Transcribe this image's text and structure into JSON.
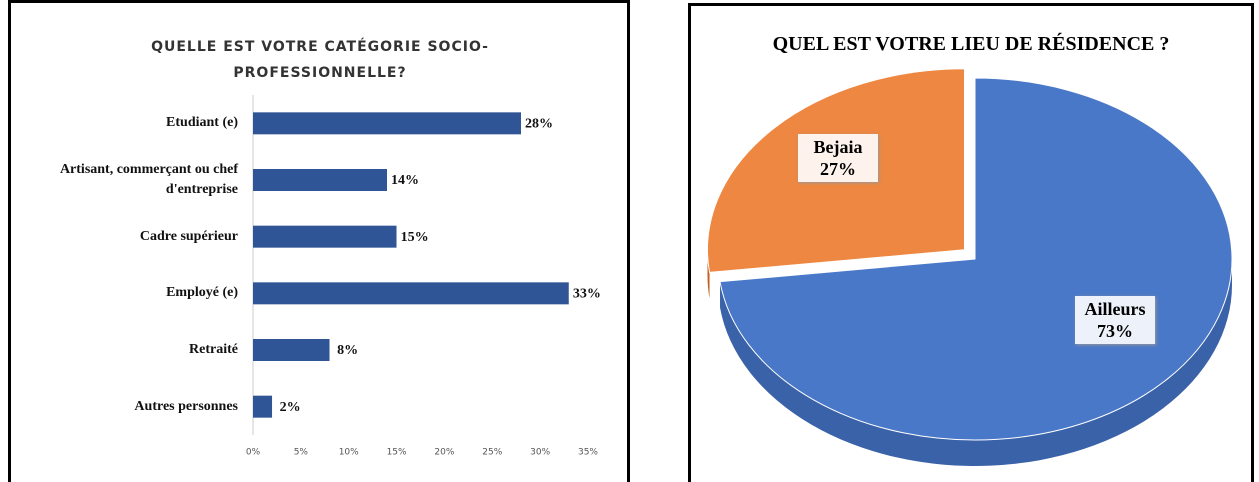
{
  "chart_data": [
    {
      "type": "bar",
      "orientation": "horizontal",
      "title": "QUELLE EST VOTRE CATÉGORIE SOCIO-PROFESSIONNELLE?",
      "categories": [
        "Etudiant (e)",
        "Artisant, commerçant ou chef d'entreprise",
        "Cadre supérieur",
        "Employé (e)",
        "Retraité",
        "Autres personnes"
      ],
      "values": [
        28,
        14,
        15,
        33,
        8,
        2
      ],
      "value_labels": [
        "28%",
        "14%",
        "15%",
        "33%",
        "8%",
        "2%"
      ],
      "color": "#2f5597",
      "xlim": [
        0,
        35
      ],
      "xticks": [
        {
          "value": 0,
          "label": "0%"
        },
        {
          "value": 5,
          "label": "5%"
        },
        {
          "value": 10,
          "label": "10%"
        },
        {
          "value": 15,
          "label": "15%"
        },
        {
          "value": 20,
          "label": "20%"
        },
        {
          "value": 25,
          "label": "25%"
        },
        {
          "value": 30,
          "label": "30%"
        },
        {
          "value": 35,
          "label": "35%"
        }
      ],
      "grid": false
    },
    {
      "type": "pie",
      "style": "3d",
      "title": "QUEL EST VOTRE LIEU DE RÉSIDENCE ?",
      "categories": [
        "Ailleurs",
        "Bejaia"
      ],
      "values": [
        73,
        27
      ],
      "value_labels": [
        "73%",
        "27%"
      ],
      "colors": [
        "#4a78c8",
        "#ed7d31"
      ]
    }
  ]
}
